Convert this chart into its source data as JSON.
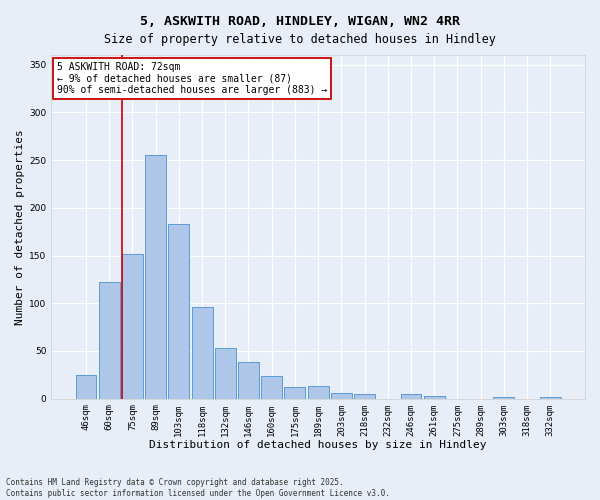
{
  "title": "5, ASKWITH ROAD, HINDLEY, WIGAN, WN2 4RR",
  "subtitle": "Size of property relative to detached houses in Hindley",
  "xlabel": "Distribution of detached houses by size in Hindley",
  "ylabel": "Number of detached properties",
  "categories": [
    "46sqm",
    "60sqm",
    "75sqm",
    "89sqm",
    "103sqm",
    "118sqm",
    "132sqm",
    "146sqm",
    "160sqm",
    "175sqm",
    "189sqm",
    "203sqm",
    "218sqm",
    "232sqm",
    "246sqm",
    "261sqm",
    "275sqm",
    "289sqm",
    "303sqm",
    "318sqm",
    "332sqm"
  ],
  "values": [
    25,
    122,
    152,
    255,
    183,
    96,
    53,
    38,
    24,
    12,
    13,
    6,
    5,
    0,
    5,
    3,
    0,
    0,
    2,
    0,
    2
  ],
  "bar_color": "#aec6e8",
  "bar_edge_color": "#5b9bd5",
  "background_color": "#e8eef7",
  "grid_color": "#ffffff",
  "vline_x_index": 2,
  "vline_color": "#cc0000",
  "annotation_text": "5 ASKWITH ROAD: 72sqm\n← 9% of detached houses are smaller (87)\n90% of semi-detached houses are larger (883) →",
  "annotation_box_color": "#cc0000",
  "ylim": [
    0,
    360
  ],
  "yticks": [
    0,
    50,
    100,
    150,
    200,
    250,
    300,
    350
  ],
  "footer": "Contains HM Land Registry data © Crown copyright and database right 2025.\nContains public sector information licensed under the Open Government Licence v3.0.",
  "title_fontsize": 9.5,
  "subtitle_fontsize": 8.5,
  "xlabel_fontsize": 8,
  "ylabel_fontsize": 8,
  "tick_fontsize": 6.5,
  "annotation_fontsize": 7,
  "footer_fontsize": 5.5
}
